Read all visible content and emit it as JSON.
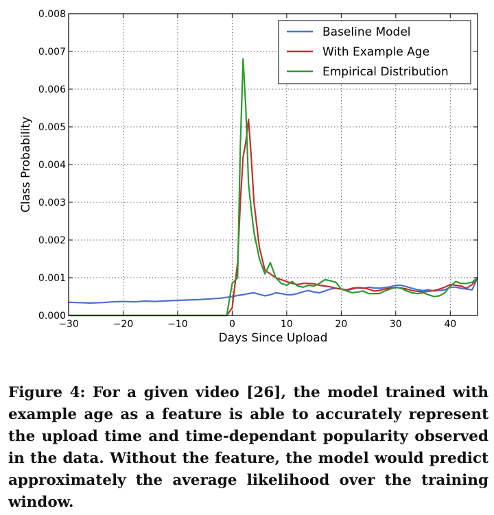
{
  "chart_data": {
    "type": "line",
    "title": "",
    "xlabel": "Days Since Upload",
    "ylabel": "Class Probability",
    "xlim": [
      -30,
      45
    ],
    "ylim": [
      0,
      0.008
    ],
    "xticks": [
      -30,
      -20,
      -10,
      0,
      10,
      20,
      30,
      40
    ],
    "xtick_labels": [
      "−30",
      "−20",
      "−10",
      "0",
      "10",
      "20",
      "30",
      "40"
    ],
    "yticks": [
      0,
      0.001,
      0.002,
      0.003,
      0.004,
      0.005,
      0.006,
      0.007,
      0.008
    ],
    "ytick_labels": [
      "0.000",
      "0.001",
      "0.002",
      "0.003",
      "0.004",
      "0.005",
      "0.006",
      "0.007",
      "0.008"
    ],
    "grid": true,
    "legend_position": "top-right",
    "series": [
      {
        "name": "Baseline Model",
        "color": "#4a6fd6",
        "x": [
          -30,
          -28,
          -26,
          -24,
          -22,
          -20,
          -18,
          -16,
          -14,
          -12,
          -10,
          -8,
          -6,
          -4,
          -2,
          0,
          1,
          2,
          3,
          4,
          5,
          6,
          7,
          8,
          9,
          10,
          11,
          12,
          13,
          14,
          15,
          16,
          17,
          18,
          19,
          20,
          21,
          22,
          23,
          24,
          25,
          26,
          27,
          28,
          29,
          30,
          31,
          32,
          33,
          34,
          35,
          36,
          37,
          38,
          39,
          40,
          41,
          42,
          43,
          44,
          45
        ],
        "y": [
          0.00035,
          0.00034,
          0.00033,
          0.00034,
          0.00036,
          0.00037,
          0.00036,
          0.00038,
          0.00037,
          0.00039,
          0.0004,
          0.00041,
          0.00042,
          0.00044,
          0.00046,
          0.0005,
          0.00053,
          0.00055,
          0.00058,
          0.0006,
          0.00056,
          0.00052,
          0.00055,
          0.0006,
          0.00058,
          0.00055,
          0.00055,
          0.00058,
          0.00063,
          0.00066,
          0.00062,
          0.0006,
          0.00065,
          0.0007,
          0.00072,
          0.0007,
          0.00066,
          0.0007,
          0.00073,
          0.00072,
          0.00075,
          0.00073,
          0.00072,
          0.00074,
          0.00076,
          0.0008,
          0.0008,
          0.00076,
          0.00072,
          0.00068,
          0.00066,
          0.00068,
          0.00065,
          0.00066,
          0.00068,
          0.00075,
          0.00075,
          0.00072,
          0.0007,
          0.00068,
          0.001
        ]
      },
      {
        "name": "With Example Age",
        "color": "#c03030",
        "x": [
          -30,
          -25,
          -20,
          -15,
          -10,
          -5,
          -1,
          0,
          1,
          1.5,
          2,
          2.5,
          3,
          3.5,
          4,
          5,
          6,
          7,
          8,
          9,
          10,
          11,
          12,
          13,
          14,
          15,
          16,
          17,
          18,
          19,
          20,
          21,
          22,
          23,
          24,
          25,
          26,
          27,
          28,
          29,
          30,
          31,
          32,
          33,
          34,
          35,
          36,
          37,
          38,
          39,
          40,
          41,
          42,
          43,
          44,
          45
        ],
        "y": [
          0,
          0,
          0,
          0,
          0,
          0,
          0,
          0.0002,
          0.0014,
          0.003,
          0.0042,
          0.0046,
          0.0052,
          0.0042,
          0.003,
          0.0018,
          0.0012,
          0.0011,
          0.001,
          0.00095,
          0.0009,
          0.00085,
          0.00082,
          0.00085,
          0.00085,
          0.00084,
          0.0008,
          0.00078,
          0.00076,
          0.00072,
          0.0007,
          0.00068,
          0.00072,
          0.00074,
          0.00073,
          0.0007,
          0.00065,
          0.00066,
          0.0007,
          0.00072,
          0.00074,
          0.00073,
          0.0007,
          0.00066,
          0.00064,
          0.00062,
          0.00064,
          0.00066,
          0.0007,
          0.00075,
          0.00082,
          0.0008,
          0.00078,
          0.00072,
          0.00082,
          0.001
        ]
      },
      {
        "name": "Empirical Distribution",
        "color": "#2e9a2e",
        "x": [
          -30,
          -25,
          -20,
          -15,
          -10,
          -5,
          -1,
          0,
          1,
          1.5,
          2,
          2.5,
          3,
          3.5,
          4,
          5,
          6,
          7,
          8,
          9,
          10,
          11,
          12,
          13,
          14,
          15,
          16,
          17,
          18,
          19,
          20,
          21,
          22,
          23,
          24,
          25,
          26,
          27,
          28,
          29,
          30,
          31,
          32,
          33,
          34,
          35,
          36,
          37,
          38,
          39,
          40,
          41,
          42,
          43,
          44,
          45
        ],
        "y": [
          0,
          0,
          0,
          0,
          0,
          0,
          0,
          0.00085,
          0.001,
          0.0045,
          0.0068,
          0.0055,
          0.0035,
          0.0028,
          0.0022,
          0.0015,
          0.0011,
          0.0014,
          0.001,
          0.00085,
          0.0008,
          0.0009,
          0.00078,
          0.00075,
          0.0008,
          0.00078,
          0.00085,
          0.00095,
          0.00092,
          0.00088,
          0.0007,
          0.00065,
          0.0006,
          0.00062,
          0.00065,
          0.00058,
          0.00058,
          0.00058,
          0.00065,
          0.0007,
          0.00075,
          0.00072,
          0.00065,
          0.0006,
          0.00058,
          0.0006,
          0.00055,
          0.0005,
          0.00052,
          0.0006,
          0.00078,
          0.0009,
          0.00085,
          0.00085,
          0.00088,
          0.001
        ]
      }
    ]
  },
  "caption": "Figure 4: For a given video [26], the model trained with example age as a feature is able to accurately represent the upload time and time-dependant popularity observed in the data. Without the feature, the model would predict approximately the average likelihood over the training window."
}
